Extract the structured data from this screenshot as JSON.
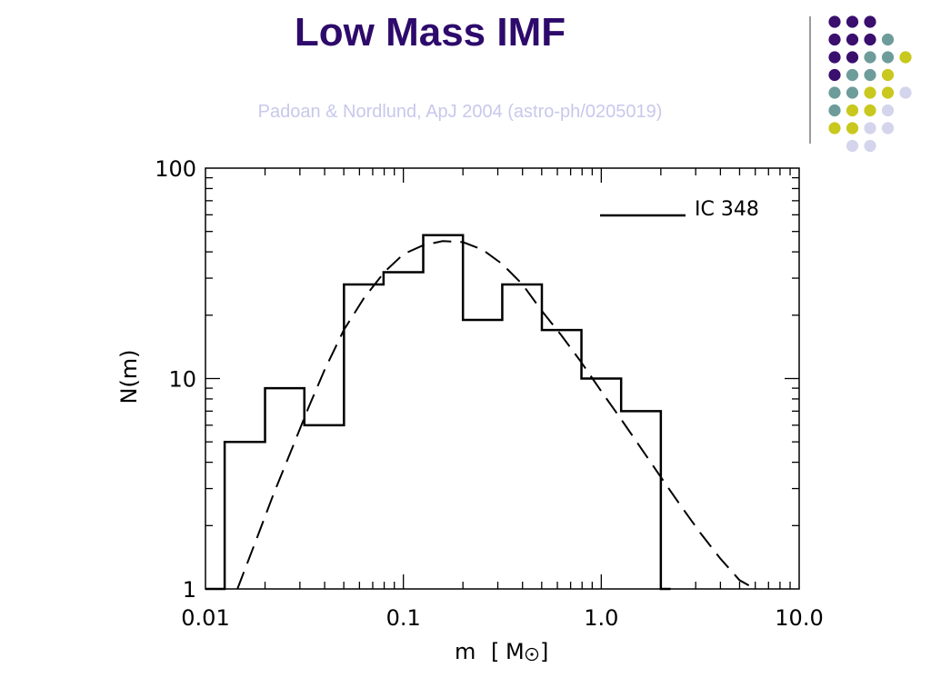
{
  "slide": {
    "title": "Low Mass IMF",
    "subtitle": "Padoan & Nordlund, ApJ 2004 (astro-ph/0205019)"
  },
  "colors": {
    "title": "#2d0a6b",
    "subtitle": "#c8c8ec",
    "accent_line": "#7a7a7a",
    "dot_palette": [
      "#3a0f6e",
      "#6e9c9a",
      "#c8c81e",
      "#d4d4ec"
    ]
  },
  "decoration": {
    "dot_rows": [
      [
        0,
        0,
        0
      ],
      [
        0,
        0,
        0,
        1
      ],
      [
        0,
        0,
        1,
        1,
        2
      ],
      [
        0,
        1,
        1,
        2
      ],
      [
        1,
        1,
        2,
        2,
        3
      ],
      [
        1,
        2,
        2,
        3
      ],
      [
        2,
        2,
        3,
        3
      ],
      [
        3,
        3
      ]
    ]
  },
  "chart_data": {
    "type": "line",
    "xlabel": "m",
    "xlabel_unit": "M",
    "ylabel": "N(m)",
    "x_scale": "log",
    "y_scale": "log",
    "xlim": [
      0.01,
      10.0
    ],
    "ylim": [
      1,
      100
    ],
    "x_ticks": [
      {
        "value": 0.01,
        "label": "0.01"
      },
      {
        "value": 0.1,
        "label": "0.1"
      },
      {
        "value": 1.0,
        "label": "1.0"
      },
      {
        "value": 10.0,
        "label": "10.0"
      }
    ],
    "y_ticks": [
      {
        "value": 1,
        "label": "1"
      },
      {
        "value": 10,
        "label": "10"
      },
      {
        "value": 100,
        "label": "100"
      }
    ],
    "legend": {
      "position": "top-right",
      "entries": [
        {
          "label": "IC 348",
          "style": "solid"
        }
      ]
    },
    "series": [
      {
        "name": "IC 348",
        "style": "solid-step",
        "bin_edges": [
          0.0125,
          0.02,
          0.0316,
          0.0501,
          0.0794,
          0.126,
          0.2,
          0.316,
          0.501,
          0.794,
          1.26,
          2.0,
          2.24
        ],
        "values": [
          5,
          9,
          6,
          28,
          32,
          48,
          19,
          28,
          17,
          10,
          7,
          1
        ],
        "pre_floor": [
          0.01,
          0.0125
        ]
      },
      {
        "style": "dashed",
        "x": [
          0.0145,
          0.018,
          0.022,
          0.027,
          0.033,
          0.04,
          0.05,
          0.063,
          0.08,
          0.1,
          0.126,
          0.158,
          0.2,
          0.251,
          0.316,
          0.4,
          0.5,
          0.63,
          0.79,
          1.0,
          1.26,
          1.58,
          2.0,
          2.51,
          3.16,
          3.98,
          5.0,
          6.0
        ],
        "y": [
          1.0,
          1.7,
          2.8,
          4.5,
          7.2,
          11,
          17,
          24,
          32,
          39,
          43,
          45,
          44.5,
          41,
          35,
          28,
          21,
          16,
          12,
          8.7,
          6.4,
          4.7,
          3.4,
          2.5,
          1.85,
          1.4,
          1.1,
          1.0
        ]
      }
    ]
  }
}
